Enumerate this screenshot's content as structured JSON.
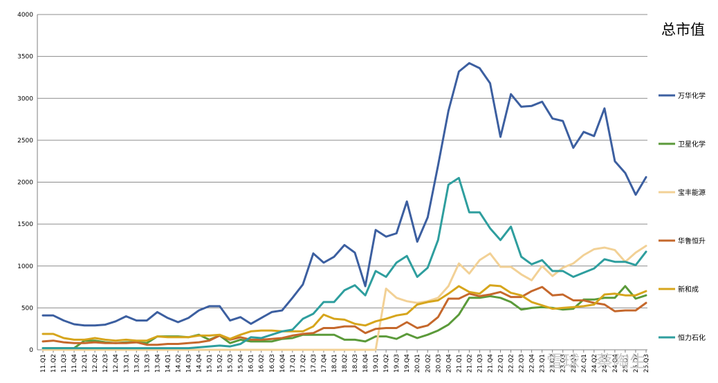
{
  "chart_data": {
    "type": "line",
    "title": "总市值",
    "ylim": [
      0,
      4000
    ],
    "yticks": [
      0,
      500,
      1000,
      1500,
      2000,
      2500,
      3000,
      3500,
      4000
    ],
    "grid": true,
    "legend_position": "right",
    "categories": [
      "11.Q1",
      "11.Q2",
      "11.Q3",
      "11.Q4",
      "12.Q1",
      "12.Q2",
      "12.Q3",
      "12.Q4",
      "13.Q1",
      "13.Q2",
      "13.Q3",
      "13.Q4",
      "14.Q1",
      "14.Q2",
      "14.Q3",
      "14.Q4",
      "15.Q1",
      "15.Q2",
      "15.Q3",
      "15.Q4",
      "16.Q1",
      "16.Q2",
      "16.Q3",
      "16.Q4",
      "17.Q1",
      "17.Q2",
      "17.Q3",
      "17.Q4",
      "18.Q1",
      "18.Q2",
      "18.Q3",
      "18.Q4",
      "19.Q1",
      "19.Q2",
      "19.Q3",
      "19.Q4",
      "20.Q1",
      "20.Q2",
      "20.Q3",
      "20.Q4",
      "21.Q1",
      "21.Q2",
      "21.Q3",
      "21.Q4",
      "22.Q1",
      "22.Q2",
      "22.Q3",
      "22.Q4",
      "23.Q1",
      "23.Q2",
      "23.Q3",
      "23.Q4",
      "24.Q1",
      "24.Q2",
      "24.Q3",
      "24.Q4",
      "25.Q1",
      "25.Q2",
      "25.Q3"
    ],
    "series": [
      {
        "name": "万华化学",
        "color": "#3c5fa0",
        "values": [
          410,
          410,
          350,
          305,
          290,
          290,
          300,
          340,
          400,
          350,
          350,
          450,
          380,
          330,
          380,
          470,
          520,
          520,
          350,
          390,
          310,
          380,
          450,
          470,
          620,
          780,
          1150,
          1040,
          1110,
          1250,
          1160,
          760,
          1430,
          1350,
          1390,
          1770,
          1290,
          1580,
          2200,
          2850,
          3320,
          3420,
          3360,
          3180,
          2540,
          3050,
          2900,
          2910,
          2960,
          2760,
          2730,
          2410,
          2600,
          2550,
          2880,
          2250,
          2110,
          1850,
          2060
        ]
      },
      {
        "name": "卫星化学",
        "color": "#5b9a3a",
        "values": [
          20,
          20,
          20,
          20,
          110,
          110,
          90,
          80,
          90,
          90,
          80,
          160,
          160,
          160,
          150,
          180,
          120,
          170,
          80,
          120,
          100,
          100,
          100,
          130,
          140,
          180,
          180,
          180,
          180,
          120,
          120,
          100,
          160,
          160,
          130,
          190,
          140,
          180,
          230,
          300,
          420,
          620,
          620,
          640,
          620,
          570,
          480,
          500,
          510,
          500,
          480,
          490,
          600,
          600,
          620,
          620,
          760,
          610,
          650
        ]
      },
      {
        "name": "宝丰能源",
        "color": "#f2d196",
        "values": [
          0,
          0,
          0,
          0,
          0,
          0,
          0,
          0,
          0,
          0,
          0,
          0,
          0,
          0,
          0,
          0,
          0,
          0,
          0,
          0,
          0,
          0,
          0,
          0,
          0,
          0,
          0,
          0,
          0,
          0,
          0,
          0,
          0,
          730,
          620,
          580,
          560,
          580,
          620,
          760,
          1030,
          910,
          1070,
          1150,
          990,
          990,
          900,
          830,
          1000,
          880,
          980,
          1030,
          1130,
          1200,
          1220,
          1190,
          1050,
          1160,
          1240
        ]
      },
      {
        "name": "华鲁恒升",
        "color": "#c5682c",
        "values": [
          100,
          110,
          90,
          80,
          80,
          90,
          80,
          80,
          80,
          90,
          60,
          60,
          70,
          70,
          80,
          90,
          110,
          170,
          120,
          150,
          120,
          120,
          130,
          140,
          170,
          190,
          200,
          260,
          260,
          280,
          280,
          200,
          250,
          260,
          260,
          330,
          260,
          290,
          390,
          610,
          610,
          670,
          640,
          660,
          690,
          630,
          630,
          700,
          750,
          650,
          660,
          590,
          590,
          560,
          540,
          460,
          470,
          470,
          560
        ]
      },
      {
        "name": "新和成",
        "color": "#d6a51c",
        "values": [
          190,
          190,
          140,
          120,
          120,
          140,
          120,
          110,
          120,
          110,
          110,
          160,
          150,
          150,
          150,
          170,
          170,
          180,
          130,
          180,
          220,
          230,
          230,
          220,
          220,
          220,
          280,
          420,
          370,
          360,
          310,
          290,
          340,
          370,
          410,
          430,
          540,
          570,
          590,
          670,
          760,
          690,
          670,
          770,
          760,
          680,
          650,
          570,
          530,
          490,
          500,
          510,
          520,
          540,
          660,
          670,
          650,
          650,
          700
        ]
      },
      {
        "name": "恒力石化",
        "color": "#2e9e9e",
        "values": [
          20,
          20,
          20,
          20,
          20,
          20,
          20,
          20,
          20,
          20,
          20,
          20,
          20,
          20,
          20,
          30,
          40,
          50,
          40,
          70,
          150,
          140,
          180,
          220,
          240,
          370,
          430,
          570,
          570,
          710,
          770,
          650,
          940,
          870,
          1040,
          1120,
          870,
          980,
          1310,
          1970,
          2050,
          1640,
          1640,
          1450,
          1310,
          1470,
          1110,
          1020,
          1070,
          940,
          940,
          870,
          920,
          970,
          1080,
          1050,
          1050,
          1010,
          1170
        ]
      }
    ]
  },
  "watermark": "雪球：蔡陶生"
}
